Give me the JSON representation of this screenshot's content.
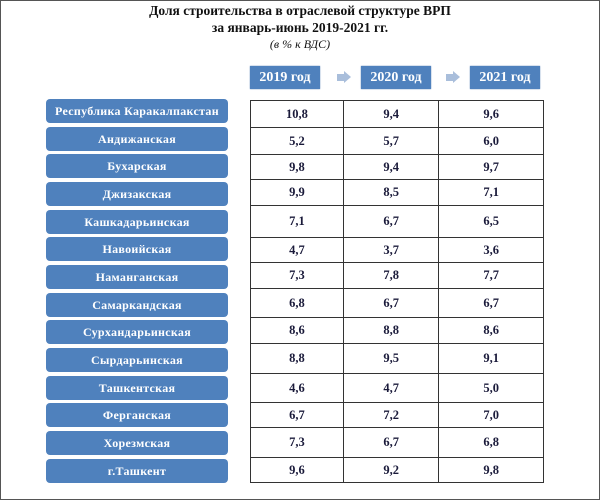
{
  "title": {
    "line1": "Доля строительства в отраслевой структуре ВРП",
    "line2": "за январь-июнь 2019-2021 гг.",
    "unit": "(в % к ВДС)"
  },
  "years": [
    "2019 год",
    "2020 год",
    "2021 год"
  ],
  "rows": [
    {
      "region": "Республика Каракалпакстан",
      "values": [
        "10,8",
        "9,4",
        "9,6"
      ]
    },
    {
      "region": "Андижанская",
      "values": [
        "5,2",
        "5,7",
        "6,0"
      ]
    },
    {
      "region": "Бухарская",
      "values": [
        "9,8",
        "9,4",
        "9,7"
      ]
    },
    {
      "region": "Джизакская",
      "values": [
        "9,9",
        "8,5",
        "7,1"
      ]
    },
    {
      "region": "Кашкадарьинская",
      "values": [
        "7,1",
        "6,7",
        "6,5"
      ]
    },
    {
      "region": "Навоийская",
      "values": [
        "4,7",
        "3,7",
        "3,6"
      ]
    },
    {
      "region": "Наманганская",
      "values": [
        "7,3",
        "7,8",
        "7,7"
      ]
    },
    {
      "region": "Самаркандская",
      "values": [
        "6,8",
        "6,7",
        "6,7"
      ]
    },
    {
      "region": "Сурхандарьинская",
      "values": [
        "8,6",
        "8,8",
        "8,6"
      ]
    },
    {
      "region": "Сырдарьинская",
      "values": [
        "8,8",
        "9,5",
        "9,1"
      ]
    },
    {
      "region": "Ташкентская",
      "values": [
        "4,6",
        "4,7",
        "5,0"
      ]
    },
    {
      "region": "Ферганская",
      "values": [
        "6,7",
        "7,2",
        "7,0"
      ]
    },
    {
      "region": "Хорезмская",
      "values": [
        "7,3",
        "6,7",
        "6,8"
      ]
    },
    {
      "region": "г.Ташкент",
      "values": [
        "9,6",
        "9,2",
        "9,8"
      ]
    }
  ],
  "colors": {
    "accent": "#4f81bd",
    "arrow": "#a9bedb"
  }
}
